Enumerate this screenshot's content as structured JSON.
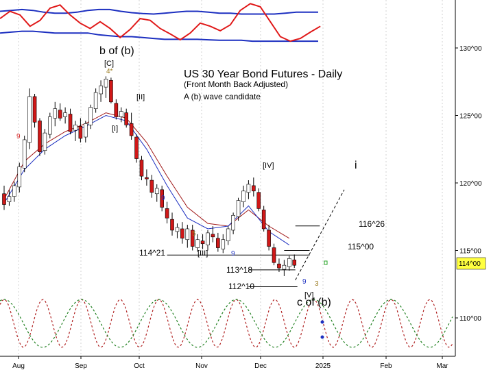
{
  "chart_data": {
    "type": "candlestick",
    "title": "US 30 Year Bond Futures - Daily",
    "subtitle": "(Front Month Back Adjusted)",
    "note": "A (b) wave candidate",
    "ylim": [
      107.5,
      132.0
    ],
    "x_labels": [
      "Aug",
      "Sep",
      "Oct",
      "Nov",
      "Dec",
      "2025",
      "Feb",
      "Mar"
    ],
    "y_ticks": [
      {
        "value": 130,
        "label": "130^00"
      },
      {
        "value": 125,
        "label": "125^00"
      },
      {
        "value": 120,
        "label": "120^00"
      },
      {
        "value": 115,
        "label": "115^00"
      },
      {
        "value": 110,
        "label": "110^00"
      }
    ],
    "last_price_label": "114^00",
    "last_price": 114.0,
    "wave_labels": [
      {
        "text": "b of (b)",
        "x": 10.0,
        "y": 130.2
      },
      {
        "text": "[C]",
        "x": 10.0,
        "y": 128.7
      },
      {
        "text": "[II]",
        "x": 11.6,
        "y": 126.4
      },
      {
        "text": "[I]",
        "x": 10.2,
        "y": 124.0
      },
      {
        "text": "[IV]",
        "x": 24.1,
        "y": 121.2
      },
      {
        "text": "i",
        "x": 32.0,
        "y": 121.2
      },
      {
        "text": "[III]",
        "x": 17.6,
        "y": 114.6
      },
      {
        "text": "[V]",
        "x": 28.0,
        "y": 111.6
      },
      {
        "text": "c of (b)",
        "x": 28.0,
        "y": 110.7
      }
    ],
    "count_labels": [
      {
        "text": "4*",
        "x": 10.0,
        "y": 128.0,
        "color": "#9a7a1e"
      },
      {
        "text": "9",
        "x": 1.5,
        "y": 123.1,
        "color": "#d42020"
      },
      {
        "text": "9",
        "x": 14.0,
        "y": 119.0,
        "color": "#1c2fc0"
      },
      {
        "text": "5",
        "x": 17.5,
        "y": 116.1,
        "color": "#9a7a1e"
      },
      {
        "text": "9",
        "x": 21.0,
        "y": 114.6,
        "color": "#1c2fc0"
      },
      {
        "text": "9",
        "x": 27.5,
        "y": 112.6,
        "color": "#1c2fc0"
      },
      {
        "text": "3",
        "x": 28.5,
        "y": 112.5,
        "color": "#9a7a1e"
      }
    ],
    "levels": [
      {
        "label": "116^26",
        "value": 116.8125,
        "x_start": 28.6,
        "x_end": 31.0
      },
      {
        "label": "115^00",
        "value": 115.0,
        "x_start": 27.5,
        "x_end": 30.0
      },
      {
        "label": "114^21",
        "value": 114.65625,
        "x_start": 16.0,
        "x_end": 30.0
      },
      {
        "label": "113^18",
        "value": 113.5625,
        "x_start": 24.0,
        "x_end": 28.6
      },
      {
        "label": "112^10",
        "value": 112.3125,
        "x_start": 24.0,
        "x_end": 28.8
      }
    ],
    "projection": {
      "x": [
        28.6,
        33.4
      ],
      "y": [
        112.8,
        119.5
      ]
    },
    "candles": [
      [
        0,
        119.2,
        119.8,
        118.0,
        118.4
      ],
      [
        0.5,
        118.6,
        119.5,
        118.3,
        119.0
      ],
      [
        1,
        119.0,
        120.1,
        118.6,
        119.8
      ],
      [
        1.5,
        119.7,
        121.5,
        119.3,
        121.2
      ],
      [
        2,
        121.1,
        123.5,
        120.8,
        123.2
      ],
      [
        2.5,
        123.0,
        127.0,
        122.5,
        126.4
      ],
      [
        3,
        126.4,
        126.6,
        124.1,
        124.5
      ],
      [
        3.5,
        124.6,
        124.8,
        122.0,
        122.3
      ],
      [
        4,
        122.4,
        124.0,
        122.1,
        123.7
      ],
      [
        4.5,
        123.6,
        125.2,
        123.3,
        124.9
      ],
      [
        5,
        124.8,
        126.0,
        124.2,
        125.5
      ],
      [
        5.5,
        125.4,
        125.9,
        124.6,
        124.8
      ],
      [
        6,
        124.9,
        125.6,
        124.4,
        125.2
      ],
      [
        6.5,
        125.1,
        125.5,
        123.6,
        123.8
      ],
      [
        7,
        123.9,
        124.6,
        123.1,
        124.3
      ],
      [
        7.5,
        124.2,
        124.8,
        123.0,
        123.3
      ],
      [
        8,
        123.4,
        124.6,
        123.0,
        124.4
      ],
      [
        8.5,
        124.3,
        125.8,
        124.0,
        125.6
      ],
      [
        9,
        125.5,
        127.0,
        125.2,
        126.7
      ],
      [
        9.5,
        126.6,
        127.6,
        126.0,
        127.2
      ],
      [
        10,
        127.1,
        127.9,
        126.3,
        127.7
      ],
      [
        10.5,
        127.6,
        127.8,
        125.9,
        126.0
      ],
      [
        11,
        125.9,
        126.2,
        124.7,
        124.9
      ],
      [
        11.5,
        124.9,
        125.6,
        124.5,
        125.3
      ],
      [
        12,
        125.2,
        125.5,
        124.1,
        124.3
      ],
      [
        12.5,
        124.4,
        125.2,
        123.2,
        123.5
      ],
      [
        13,
        123.4,
        123.6,
        121.5,
        121.8
      ],
      [
        13.5,
        121.7,
        122.0,
        120.2,
        120.5
      ],
      [
        14,
        120.4,
        121.0,
        119.8,
        120.3
      ],
      [
        14.5,
        120.2,
        120.6,
        118.9,
        119.3
      ],
      [
        15,
        119.2,
        119.9,
        118.6,
        119.6
      ],
      [
        15.5,
        119.5,
        119.8,
        117.9,
        118.2
      ],
      [
        16,
        118.1,
        118.6,
        117.0,
        117.4
      ],
      [
        16.5,
        117.3,
        117.8,
        116.1,
        116.5
      ],
      [
        17,
        116.4,
        117.0,
        115.9,
        116.7
      ],
      [
        17.5,
        116.6,
        117.1,
        115.5,
        115.9
      ],
      [
        18,
        115.8,
        116.9,
        115.2,
        116.6
      ],
      [
        18.5,
        116.5,
        116.9,
        115.0,
        115.3
      ],
      [
        19,
        115.2,
        116.2,
        114.9,
        115.8
      ],
      [
        19.5,
        115.7,
        116.2,
        115.1,
        115.5
      ],
      [
        20,
        115.4,
        116.5,
        115.0,
        116.3
      ],
      [
        20.5,
        116.2,
        116.8,
        115.6,
        116.0
      ],
      [
        21,
        115.9,
        116.3,
        114.9,
        115.2
      ],
      [
        21.5,
        115.1,
        116.2,
        114.8,
        115.8
      ],
      [
        22,
        115.7,
        116.8,
        115.4,
        116.6
      ],
      [
        22.5,
        116.5,
        117.8,
        116.2,
        117.6
      ],
      [
        23,
        117.5,
        118.9,
        117.2,
        118.7
      ],
      [
        23.5,
        118.6,
        119.8,
        118.2,
        119.4
      ],
      [
        24,
        119.3,
        120.2,
        118.8,
        119.9
      ],
      [
        24.5,
        119.8,
        120.4,
        119.0,
        119.4
      ],
      [
        25,
        119.3,
        119.6,
        117.9,
        118.1
      ],
      [
        25.5,
        118.0,
        118.3,
        116.4,
        116.6
      ],
      [
        26,
        116.5,
        116.9,
        115.0,
        115.3
      ],
      [
        26.5,
        115.2,
        115.5,
        113.9,
        114.1
      ],
      [
        27,
        114.0,
        114.4,
        113.4,
        113.7
      ],
      [
        27.5,
        113.6,
        114.3,
        113.1,
        113.9
      ],
      [
        28,
        113.8,
        114.6,
        113.5,
        114.4
      ],
      [
        28.5,
        114.3,
        114.7,
        113.7,
        113.9
      ]
    ],
    "ma_blue": {
      "x": [
        0,
        2,
        4,
        6,
        8,
        10,
        12,
        14,
        16,
        18,
        20,
        22,
        24,
        26,
        28
      ],
      "y": [
        118.5,
        121.0,
        122.5,
        123.5,
        124.2,
        125.0,
        124.6,
        122.5,
        119.8,
        117.4,
        116.6,
        116.8,
        118.3,
        116.4,
        115.4
      ]
    },
    "ma_red": {
      "x": [
        0,
        2,
        4,
        6,
        8,
        10,
        12,
        14,
        16,
        18,
        20,
        22,
        24,
        26,
        28
      ],
      "y": [
        118.8,
        121.6,
        122.9,
        123.8,
        124.4,
        125.2,
        124.8,
        123.0,
        120.5,
        118.2,
        117.0,
        116.8,
        118.0,
        116.8,
        115.9
      ]
    },
    "osc_red_y": [
      0.62,
      0.78,
      0.7,
      0.45,
      0.58,
      0.85,
      0.92,
      0.7,
      0.52,
      0.4,
      0.55,
      0.4,
      0.2,
      0.38,
      0.62,
      0.58,
      0.4,
      0.28,
      0.15,
      0.3,
      0.52,
      0.45,
      0.35,
      0.48,
      0.8,
      0.95,
      0.88,
      0.55,
      0.22,
      0.12,
      0.18,
      0.32,
      0.45
    ],
    "osc_blue_upper_y": [
      0.78,
      0.8,
      0.82,
      0.8,
      0.76,
      0.74,
      0.74,
      0.76,
      0.8,
      0.82,
      0.82,
      0.78,
      0.75,
      0.73,
      0.72,
      0.74,
      0.76,
      0.78,
      0.78,
      0.76,
      0.74,
      0.74,
      0.72,
      0.72,
      0.72,
      0.72,
      0.74,
      0.76,
      0.76,
      0.76
    ],
    "osc_blue_lower_y": [
      0.3,
      0.32,
      0.34,
      0.34,
      0.32,
      0.3,
      0.3,
      0.3,
      0.3,
      0.26,
      0.24,
      0.22,
      0.22,
      0.2,
      0.18,
      0.16,
      0.16,
      0.16,
      0.16,
      0.15,
      0.14,
      0.14,
      0.14,
      0.12,
      0.12,
      0.12,
      0.12,
      0.12,
      0.12,
      0.12
    ],
    "cycle_red_period": 3.8,
    "cycle_green_period": 7.6
  }
}
